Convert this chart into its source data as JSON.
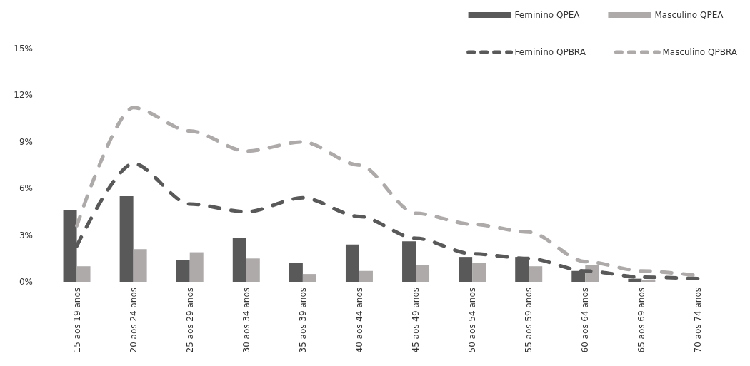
{
  "chart_data": {
    "type": "bar",
    "categories": [
      "15 aos 19 anos",
      "20 aos 24 anos",
      "25 aos 29 anos",
      "30 aos 34 anos",
      "35 aos 39 anos",
      "40 aos 44 anos",
      "45 aos 49 anos",
      "50 aos 54 anos",
      "55 aos 59 anos",
      "60 aos 64 anos",
      "65 aos 69 anos",
      "70 aos 74 anos"
    ],
    "series": [
      {
        "name": "Feminino QPEA",
        "color": "#595959",
        "values": [
          4.6,
          5.5,
          1.4,
          2.8,
          1.2,
          2.4,
          2.6,
          1.6,
          1.6,
          0.7,
          0.2,
          null
        ]
      },
      {
        "name": "Masculino QPEA",
        "color": "#aeaaaa",
        "values": [
          1.0,
          2.1,
          1.9,
          1.5,
          0.5,
          0.7,
          1.1,
          1.2,
          1.0,
          1.1,
          0.1,
          null
        ]
      },
      {
        "name": "Feminino QPBRA",
        "type": "line",
        "color": "#595959",
        "line_style": "dashed",
        "values": [
          2.3,
          7.6,
          5.0,
          4.5,
          5.4,
          4.2,
          2.8,
          1.8,
          1.5,
          0.7,
          0.3,
          0.2
        ]
      },
      {
        "name": "Masculino QPBRA",
        "type": "line",
        "color": "#aeaaaa",
        "line_style": "dashed",
        "values": [
          3.6,
          11.2,
          9.7,
          8.4,
          9.0,
          7.5,
          4.4,
          3.7,
          3.2,
          1.3,
          0.7,
          0.4
        ]
      }
    ],
    "ylim": [
      0,
      15
    ],
    "yticks": [
      {
        "value": 0,
        "label": "0%"
      },
      {
        "value": 3,
        "label": "3%"
      },
      {
        "value": 6,
        "label": "6%"
      },
      {
        "value": 9,
        "label": "9%"
      },
      {
        "value": 12,
        "label": "12%"
      },
      {
        "value": 15,
        "label": "15%"
      }
    ],
    "grid": false,
    "legend": "top right",
    "marker": "none"
  }
}
